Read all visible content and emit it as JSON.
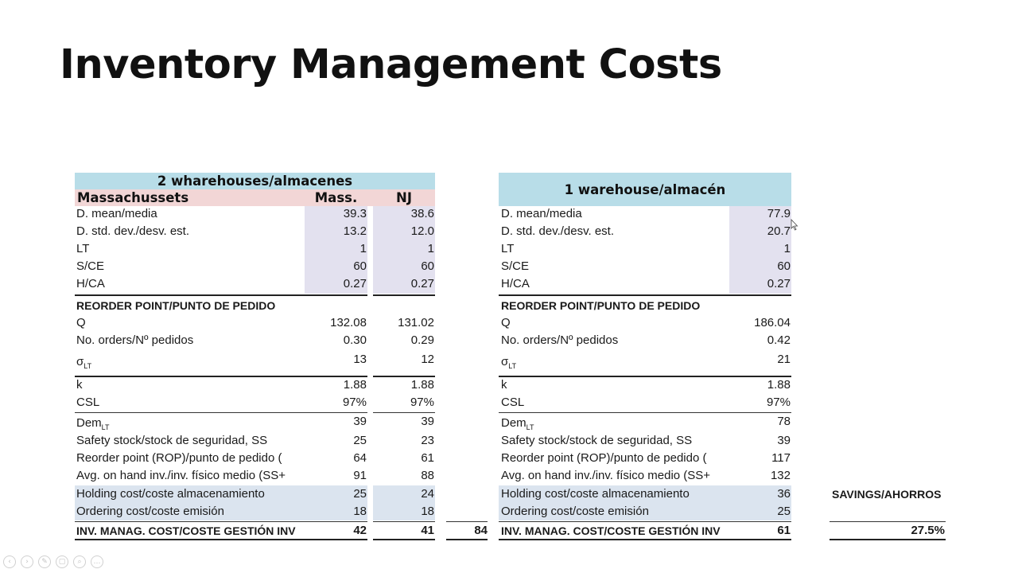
{
  "slide": {
    "title": "Inventory Management Costs"
  },
  "left": {
    "header": "2 wharehouses/almacenes",
    "subheader": {
      "label": "Massachussets",
      "col1": "Mass.",
      "col2": "NJ"
    },
    "inputs": [
      {
        "label": "D. mean/media",
        "mass": "39.3",
        "nj": "38.6"
      },
      {
        "label": "D. std. dev./desv. est.",
        "mass": "13.2",
        "nj": "12.0"
      },
      {
        "label": "LT",
        "mass": "1",
        "nj": "1"
      },
      {
        "label": "S/CE",
        "mass": "60",
        "nj": "60"
      },
      {
        "label": "H/CA",
        "mass": "0.27",
        "nj": "0.27"
      }
    ],
    "section": "REORDER POINT/PUNTO DE PEDIDO",
    "q": {
      "label": "Q",
      "mass": "132.08",
      "nj": "131.02"
    },
    "orders": {
      "label": "No. orders/Nº pedidos",
      "mass": "0.30",
      "nj": "0.29"
    },
    "sigma": {
      "label": "σ",
      "sub": "LT",
      "mass": "13",
      "nj": "12"
    },
    "k": {
      "label": "k",
      "mass": "1.88",
      "nj": "1.88"
    },
    "csl": {
      "label": "CSL",
      "mass": "97%",
      "nj": "97%"
    },
    "dem": {
      "label": "Dem",
      "sub": "LT",
      "mass": "39",
      "nj": "39"
    },
    "ss": {
      "label": "Safety stock/stock de seguridad, SS",
      "mass": "25",
      "nj": "23"
    },
    "rop": {
      "label": "Reorder point (ROP)/punto de pedido (",
      "mass": "64",
      "nj": "61"
    },
    "avg": {
      "label": "Avg. on hand inv./inv. físico medio (SS+",
      "mass": "91",
      "nj": "88"
    },
    "holding": {
      "label": "Holding cost/coste almacenamiento",
      "mass": "25",
      "nj": "24"
    },
    "ordering": {
      "label": "Ordering cost/coste emisión",
      "mass": "18",
      "nj": "18"
    },
    "total": {
      "label": "INV. MANAG. COST/COSTE GESTIÓN INV",
      "mass": "42",
      "nj": "41",
      "sum": "84"
    }
  },
  "right": {
    "header": "1 warehouse/almacén",
    "inputs": [
      {
        "label": "D. mean/media",
        "value": "77.9"
      },
      {
        "label": "D. std. dev./desv. est.",
        "value": "20.7"
      },
      {
        "label": "LT",
        "value": "1"
      },
      {
        "label": "S/CE",
        "value": "60"
      },
      {
        "label": "H/CA",
        "value": "0.27"
      }
    ],
    "section": "REORDER POINT/PUNTO DE PEDIDO",
    "q": {
      "label": "Q",
      "value": "186.04"
    },
    "orders": {
      "label": "No. orders/Nº pedidos",
      "value": "0.42"
    },
    "sigma": {
      "label": "σ",
      "sub": "LT",
      "value": "21"
    },
    "k": {
      "label": "k",
      "value": "1.88"
    },
    "csl": {
      "label": "CSL",
      "value": "97%"
    },
    "dem": {
      "label": "Dem",
      "sub": "LT",
      "value": "78"
    },
    "ss": {
      "label": "Safety stock/stock de seguridad, SS",
      "value": "39"
    },
    "rop": {
      "label": "Reorder point (ROP)/punto de pedido (",
      "value": "117"
    },
    "avg": {
      "label": "Avg. on hand inv./inv. físico medio (SS+",
      "value": "132"
    },
    "holding": {
      "label": "Holding cost/coste almacenamiento",
      "value": "36"
    },
    "ordering": {
      "label": "Ordering cost/coste emisión",
      "value": "25"
    },
    "total": {
      "label": "INV. MANAG. COST/COSTE GESTIÓN INV",
      "value": "61"
    }
  },
  "savings": {
    "label": "SAVINGS/AHORROS",
    "value": "27.5%"
  },
  "colors": {
    "header_blue": "#b8dde8",
    "header_pink": "#f2d6d6",
    "input_purple": "#e3e1ef",
    "cost_blue": "#dbe4ef"
  },
  "controls": [
    "prev-icon",
    "next-icon",
    "pen-icon",
    "slides-icon",
    "zoom-icon",
    "more-icon"
  ]
}
